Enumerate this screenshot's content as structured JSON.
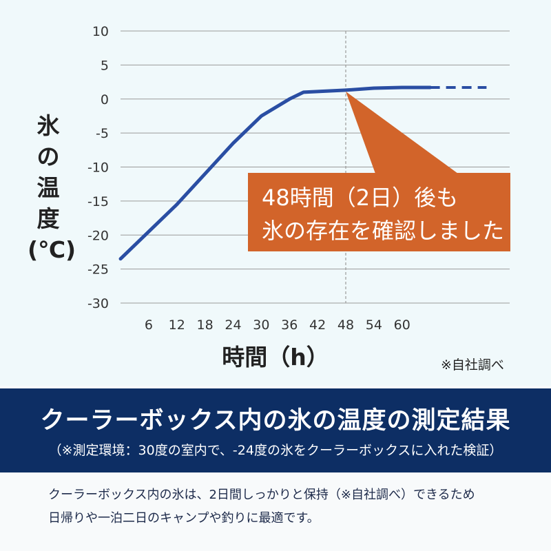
{
  "chart_data": {
    "type": "line",
    "ylabel_chars": [
      "氷",
      "の",
      "温",
      "度",
      "(℃)"
    ],
    "xlabel": "時間（h）",
    "ylim": [
      -30,
      10
    ],
    "xlim": [
      0,
      72
    ],
    "y_ticks": [
      "10",
      "5",
      "0",
      "-5",
      "-10",
      "-15",
      "-20",
      "-25",
      "-30"
    ],
    "x_ticks": [
      "6",
      "12",
      "18",
      "24",
      "30",
      "36",
      "42",
      "48",
      "54",
      "60"
    ],
    "grid": true,
    "reference_x": 48,
    "series": [
      {
        "color": "#2a4ea3",
        "solid": [
          [
            0,
            -23.5
          ],
          [
            6,
            -19.5
          ],
          [
            12,
            -15.5
          ],
          [
            18,
            -11.0
          ],
          [
            24,
            -6.5
          ],
          [
            30,
            -2.5
          ],
          [
            36,
            0.0
          ],
          [
            39,
            1.0
          ],
          [
            42,
            1.1
          ],
          [
            48,
            1.3
          ],
          [
            54,
            1.6
          ],
          [
            60,
            1.7
          ],
          [
            66,
            1.7
          ]
        ],
        "projected": [
          [
            66,
            1.7
          ],
          [
            78,
            1.7
          ]
        ]
      }
    ],
    "annotation": {
      "lines": [
        "48時間（2日）後も",
        "氷の存在を確認しました"
      ],
      "point": [
        48,
        1.3
      ],
      "color": "#d2642a"
    }
  },
  "note": "※自社調べ",
  "banner": {
    "title": "クーラーボックス内の氷の温度の測定結果",
    "subtitle": "（※測定環境：30度の室内で、-24度の氷をクーラーボックスに入れた検証）",
    "bg_color": "#0d2e64"
  },
  "description": [
    "クーラーボックス内の氷は、2日間しっかりと保持（※自社調べ）できるため",
    "日帰りや一泊二日のキャンプや釣りに最適です。"
  ]
}
